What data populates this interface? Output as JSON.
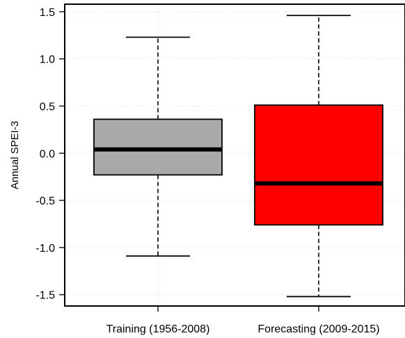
{
  "chart_data": {
    "type": "box",
    "ylabel": "Annual SPEI-3",
    "ylim": [
      -1.62,
      1.58
    ],
    "yticks": [
      -1.5,
      -1.0,
      -0.5,
      0.0,
      0.5,
      1.0,
      1.5
    ],
    "ytick_labels": [
      "-1.5",
      "-1.0",
      "-0.5",
      "0.0",
      "0.5",
      "1.0",
      "1.5"
    ],
    "grid": true,
    "categories": [
      "Training (1956-2008)",
      "Forecasting (2009-2015)"
    ],
    "boxes": [
      {
        "label": "Training (1956-2008)",
        "whisker_low": -1.09,
        "q1": -0.23,
        "median": 0.04,
        "q3": 0.36,
        "whisker_high": 1.23,
        "color": "#a9a9a9"
      },
      {
        "label": "Forecasting (2009-2015)",
        "whisker_low": -1.52,
        "q1": -0.76,
        "median": -0.32,
        "q3": 0.51,
        "whisker_high": 1.46,
        "color": "#ff0000"
      }
    ]
  }
}
